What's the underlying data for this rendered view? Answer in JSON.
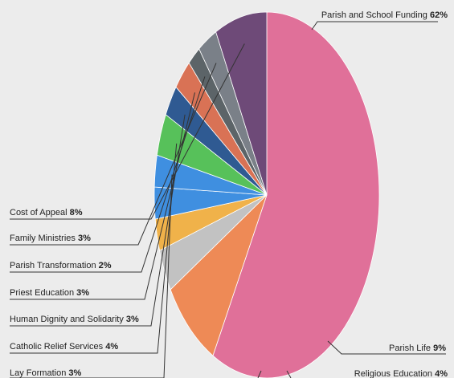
{
  "chart_data": {
    "type": "pie",
    "title": "",
    "slices": [
      {
        "label": "Parish and School Funding",
        "value": 62,
        "value_label": "62%",
        "color": "#e07099"
      },
      {
        "label": "Parish Life",
        "value": 9,
        "value_label": "9%",
        "color": "#ee8a56"
      },
      {
        "label": "Religious Education",
        "value": 4,
        "value_label": "4%",
        "color": "#c2c2c2"
      },
      {
        "label": "",
        "value": 3,
        "value_label": "",
        "color": "#f0b24a"
      },
      {
        "label": "",
        "value": 3,
        "value_label": "",
        "color": "#3f8fe0"
      },
      {
        "label": "Lay Formation",
        "value": 3,
        "value_label": "3%",
        "color": "#3f8fe0"
      },
      {
        "label": "Catholic Relief Services",
        "value": 4,
        "value_label": "4%",
        "color": "#57c15a"
      },
      {
        "label": "Human Dignity and Solidarity",
        "value": 3,
        "value_label": "3%",
        "color": "#2f5a92"
      },
      {
        "label": "Priest Education",
        "value": 3,
        "value_label": "3%",
        "color": "#d97255"
      },
      {
        "label": "Parish Transformation",
        "value": 2,
        "value_label": "2%",
        "color": "#5c6468"
      },
      {
        "label": "Family Ministries",
        "value": 3,
        "value_label": "3%",
        "color": "#7a8088"
      },
      {
        "label": "Cost of Appeal",
        "value": 8,
        "value_label": "8%",
        "color": "#6e4a78"
      }
    ]
  }
}
